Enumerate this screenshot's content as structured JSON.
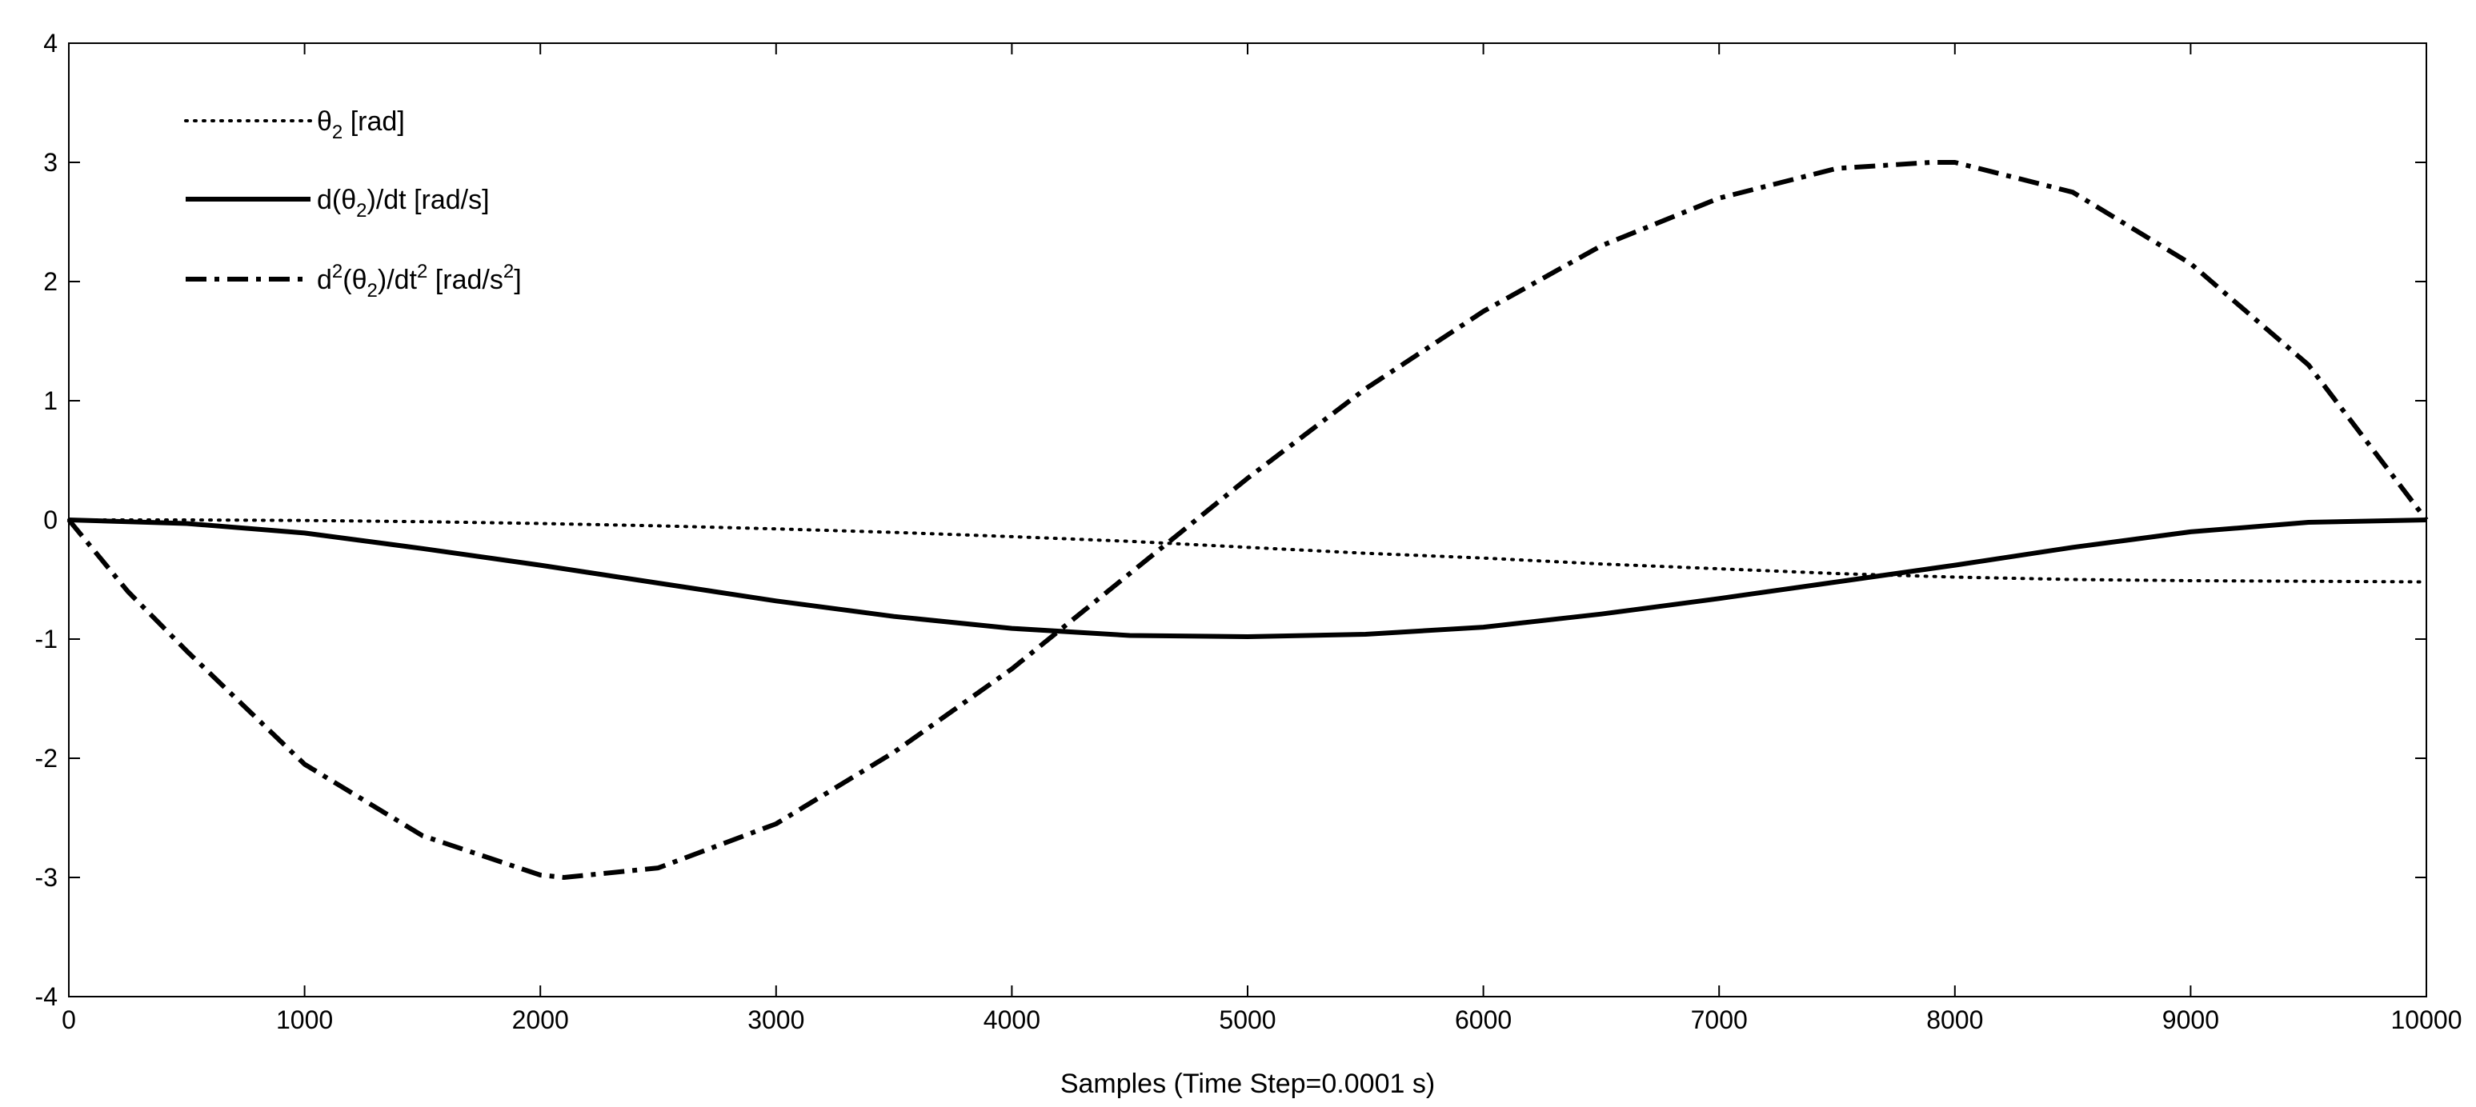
{
  "chart_data": {
    "type": "line",
    "xlabel": "Samples (Time Step=0.0001 s)",
    "ylabel": "",
    "xlim": [
      0,
      10000
    ],
    "ylim": [
      -4,
      4
    ],
    "xticks": [
      0,
      1000,
      2000,
      3000,
      4000,
      5000,
      6000,
      7000,
      8000,
      9000,
      10000
    ],
    "yticks": [
      -4,
      -3,
      -2,
      -1,
      0,
      1,
      2,
      3,
      4
    ],
    "grid": false,
    "legend_position": "top-left",
    "series": [
      {
        "name": "θ2 [rad]",
        "legend": {
          "base": "θ",
          "sub": "2",
          "rest": " [rad]"
        },
        "style": "dotted",
        "x": [
          0,
          500,
          1000,
          1500,
          2000,
          2500,
          3000,
          3500,
          4000,
          4500,
          5000,
          5500,
          6000,
          6500,
          7000,
          7500,
          8000,
          8500,
          9000,
          9500,
          10000
        ],
        "y": [
          0,
          0,
          -0.005,
          -0.015,
          -0.03,
          -0.05,
          -0.075,
          -0.105,
          -0.14,
          -0.18,
          -0.23,
          -0.28,
          -0.32,
          -0.37,
          -0.41,
          -0.45,
          -0.48,
          -0.5,
          -0.51,
          -0.515,
          -0.52
        ]
      },
      {
        "name": "d(θ2)/dt [rad/s]",
        "legend": {
          "pre": "d(θ",
          "sub": "2",
          "rest": ")/dt [rad/s]"
        },
        "style": "solid",
        "x": [
          0,
          500,
          1000,
          1500,
          2000,
          2500,
          3000,
          3500,
          4000,
          4500,
          5000,
          5500,
          6000,
          6500,
          7000,
          7500,
          8000,
          8500,
          9000,
          9500,
          10000
        ],
        "y": [
          0,
          -0.03,
          -0.11,
          -0.24,
          -0.38,
          -0.53,
          -0.68,
          -0.81,
          -0.91,
          -0.97,
          -0.98,
          -0.96,
          -0.9,
          -0.79,
          -0.66,
          -0.52,
          -0.38,
          -0.23,
          -0.1,
          -0.02,
          0
        ]
      },
      {
        "name": "d2(θ2)/dt2 [rad/s2]",
        "legend": {
          "d": "d",
          "sup1": "2",
          "mid1": "(θ",
          "sub": "2",
          "mid2": ")/dt",
          "sup2": "2",
          "rest": " [rad/s",
          "sup3": "2",
          "end": "]"
        },
        "style": "dashdot",
        "x": [
          0,
          250,
          500,
          1000,
          1500,
          2000,
          2100,
          2500,
          3000,
          3500,
          4000,
          4500,
          5000,
          5500,
          6000,
          6500,
          7000,
          7500,
          7900,
          8000,
          8500,
          9000,
          9500,
          10000
        ],
        "y": [
          0,
          -0.6,
          -1.1,
          -2.05,
          -2.65,
          -2.98,
          -3.0,
          -2.92,
          -2.55,
          -1.95,
          -1.25,
          -0.45,
          0.35,
          1.1,
          1.75,
          2.3,
          2.7,
          2.95,
          3.0,
          3.0,
          2.75,
          2.15,
          1.3,
          0
        ]
      }
    ]
  }
}
